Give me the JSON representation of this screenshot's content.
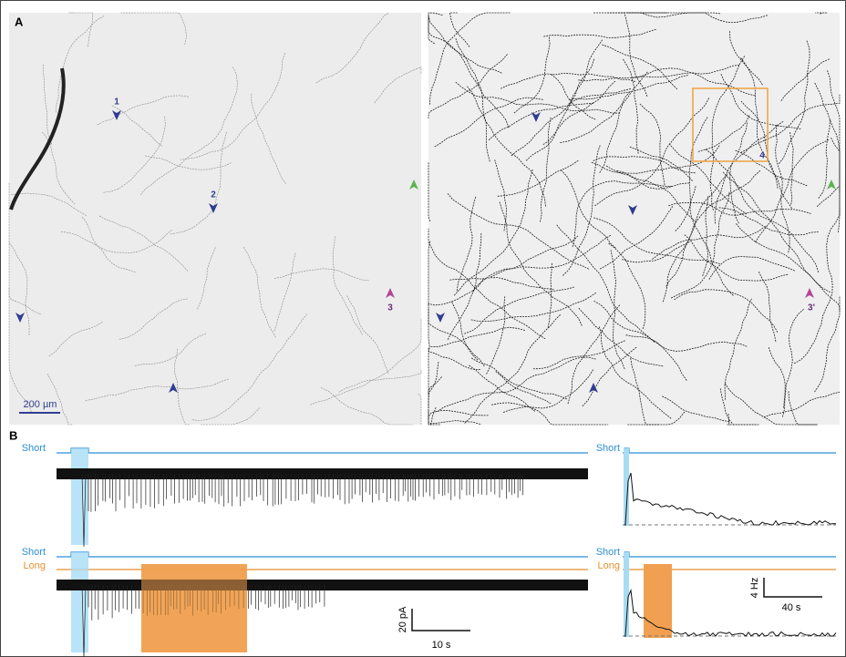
{
  "panel_a": {
    "label": "A",
    "scale_bar": "200 µm",
    "left_markers": [
      "1",
      "2",
      "3"
    ],
    "right_markers": [
      "3'",
      "4"
    ]
  },
  "panel_b": {
    "label": "B",
    "traces": {
      "top": {
        "stimuli": [
          "Short"
        ]
      },
      "bottom": {
        "stimuli": [
          "Short",
          "Long"
        ]
      }
    },
    "rates": {
      "top": {
        "stimuli": [
          "Short"
        ]
      },
      "bottom": {
        "stimuli": [
          "Short",
          "Long"
        ]
      }
    },
    "current_scale": {
      "y": "20 pA",
      "x": "10 s"
    },
    "rate_scale": {
      "y": "4 Hz",
      "x": "40 s"
    }
  }
}
